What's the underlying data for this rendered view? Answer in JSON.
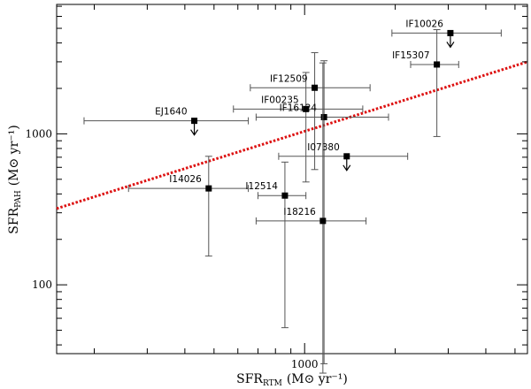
{
  "chart_data": {
    "type": "scatter",
    "title": "",
    "xlabel": {
      "main": "SFR",
      "sub": "RTM",
      "units": "(M⊙ yr⁻¹)"
    },
    "ylabel": {
      "main": "SFR",
      "sub": "PAH",
      "units": "(M⊙ yr⁻¹)"
    },
    "xscale": "log",
    "yscale": "log",
    "xlim": [
      150,
      5500
    ],
    "ylim": [
      35,
      7200
    ],
    "xticks": [
      {
        "value": 1000,
        "label": "1000"
      }
    ],
    "yticks": [
      {
        "value": 100,
        "label": "100"
      },
      {
        "value": 1000,
        "label": "1000"
      }
    ],
    "grid": false,
    "fit_line": {
      "x": [
        150,
        5500
      ],
      "y": [
        320,
        3000
      ],
      "color": "#dd1111",
      "style": "dotted"
    },
    "points": [
      {
        "name": "EJ1640",
        "x": 430,
        "y": 1220,
        "xerr": [
          185,
          650
        ],
        "yerr": null,
        "upper_limit": true
      },
      {
        "name": "IF00235",
        "x": 1010,
        "y": 1460,
        "xerr": [
          580,
          1560
        ],
        "yerr": [
          480,
          2550
        ],
        "upper_limit": false
      },
      {
        "name": "IF12509",
        "x": 1080,
        "y": 2020,
        "xerr": [
          660,
          1650
        ],
        "yerr": [
          580,
          3450
        ],
        "upper_limit": false
      },
      {
        "name": "IF16124",
        "x": 1160,
        "y": 1290,
        "xerr": [
          690,
          1900
        ],
        "yerr": [
          30,
          3050
        ],
        "upper_limit": false
      },
      {
        "name": "IF15307",
        "x": 2750,
        "y": 2880,
        "xerr": [
          2250,
          3250
        ],
        "yerr": [
          960,
          4900
        ],
        "upper_limit": false
      },
      {
        "name": "IF10026",
        "x": 3050,
        "y": 4650,
        "xerr": [
          1950,
          4500
        ],
        "yerr": null,
        "upper_limit": true
      },
      {
        "name": "I07380",
        "x": 1380,
        "y": 710,
        "xerr": [
          820,
          2200
        ],
        "yerr": null,
        "upper_limit": true
      },
      {
        "name": "I14026",
        "x": 480,
        "y": 435,
        "xerr": [
          260,
          650
        ],
        "yerr": [
          155,
          710
        ],
        "upper_limit": false
      },
      {
        "name": "I12514",
        "x": 860,
        "y": 390,
        "xerr": [
          700,
          1010
        ],
        "yerr": [
          52,
          650
        ],
        "upper_limit": false
      },
      {
        "name": "I18216",
        "x": 1150,
        "y": 265,
        "xerr": [
          690,
          1600
        ],
        "yerr": [
          26,
          2950
        ],
        "upper_limit": false
      }
    ]
  }
}
